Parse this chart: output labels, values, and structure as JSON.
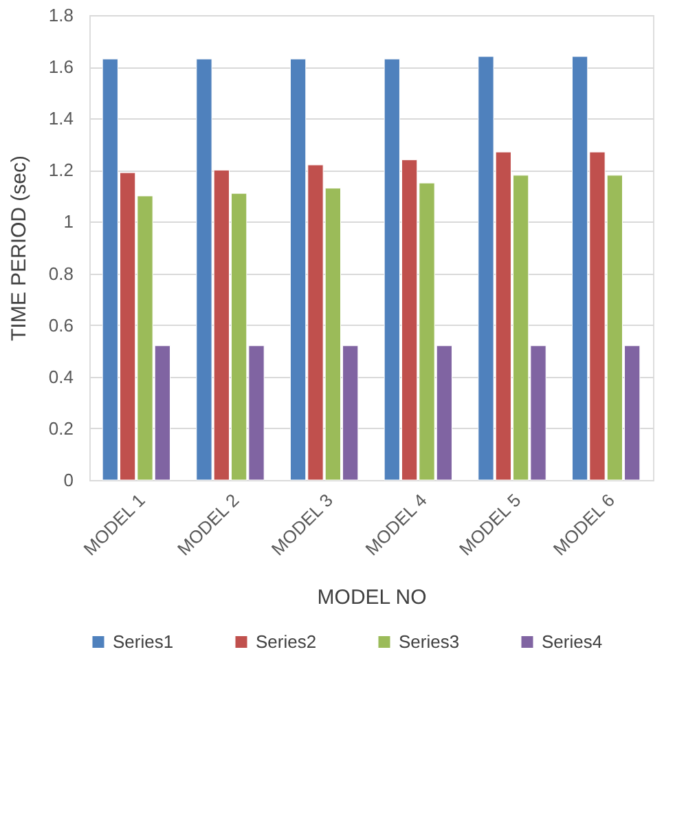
{
  "chart_data": {
    "type": "bar",
    "xlabel": "MODEL NO",
    "ylabel": "TIME PERIOD (sec)",
    "categories": [
      "MODEL 1",
      "MODEL 2",
      "MODEL 3",
      "MODEL 4",
      "MODEL 5",
      "MODEL 6"
    ],
    "series": [
      {
        "name": "Series1",
        "color": "#4f81bd",
        "values": [
          1.63,
          1.63,
          1.63,
          1.63,
          1.64,
          1.64
        ]
      },
      {
        "name": "Series2",
        "color": "#c0504d",
        "values": [
          1.19,
          1.2,
          1.22,
          1.24,
          1.27,
          1.27
        ]
      },
      {
        "name": "Series3",
        "color": "#9bbb59",
        "values": [
          1.1,
          1.11,
          1.13,
          1.15,
          1.18,
          1.18
        ]
      },
      {
        "name": "Series4",
        "color": "#8064a2",
        "values": [
          0.52,
          0.52,
          0.52,
          0.52,
          0.52,
          0.52
        ]
      }
    ],
    "ylim": [
      0,
      1.8
    ],
    "yticks": [
      0,
      0.2,
      0.4,
      0.6,
      0.8,
      1,
      1.2,
      1.4,
      1.6,
      1.8
    ],
    "grid": "y",
    "legend": "bottom"
  }
}
